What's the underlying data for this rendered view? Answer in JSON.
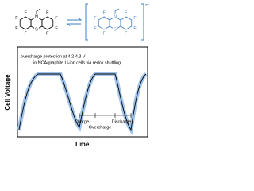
{
  "molecules": [
    {
      "atoms": [
        "F",
        "F",
        "F",
        "F",
        "F",
        "F",
        "F",
        "F",
        "N",
        "S"
      ]
    },
    {
      "atoms": [
        "F",
        "F",
        "F",
        "F",
        "F",
        "F",
        "F",
        "F",
        "N",
        "S"
      ],
      "charge": "•+"
    }
  ],
  "plot": {
    "y_label": "Cell Voltage",
    "x_label": "Time",
    "note": [
      "overcharge protection at 4.2-4.3 V",
      "in NCA/graphite Li-ion cells via redox shuttling"
    ],
    "phases": [
      "Charge",
      "Overcharge",
      "Discharge"
    ]
  }
}
